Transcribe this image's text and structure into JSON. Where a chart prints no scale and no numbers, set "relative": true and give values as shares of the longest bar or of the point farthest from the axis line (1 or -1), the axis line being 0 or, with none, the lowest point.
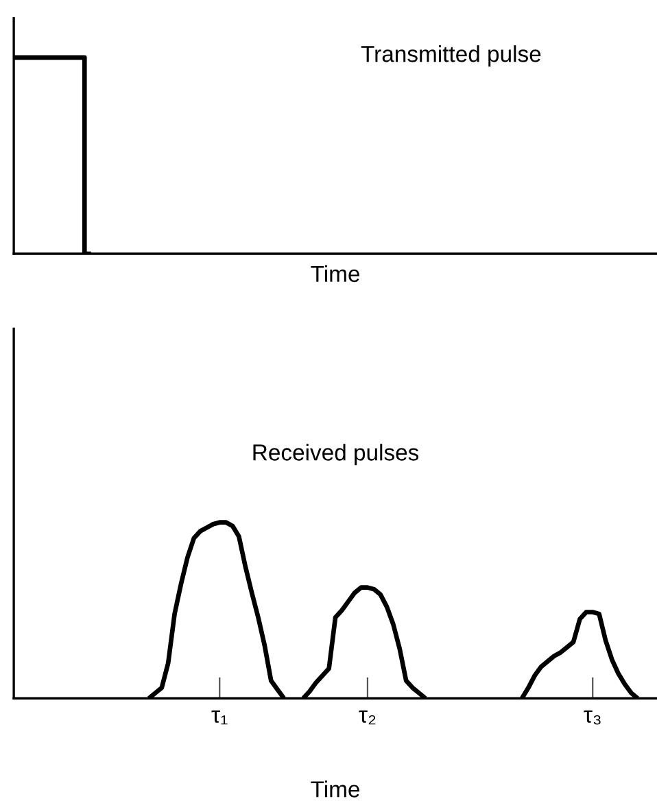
{
  "chart_data": [
    {
      "type": "step",
      "title": "Transmitted pulse",
      "xlabel": "Time",
      "relative": true,
      "tick_labels": false,
      "categories": [
        null,
        null,
        null,
        null,
        null,
        null,
        null,
        null,
        null,
        null,
        null,
        null,
        null,
        null,
        null,
        null,
        null,
        null,
        null,
        null,
        null,
        null,
        null,
        null,
        null,
        null,
        null,
        null,
        null,
        null,
        null,
        null,
        null,
        null,
        null,
        null,
        null,
        null,
        null,
        null,
        null,
        null,
        null,
        null,
        null,
        null,
        null,
        null,
        null,
        null,
        null,
        null,
        null,
        null,
        null,
        null,
        null,
        null,
        null,
        null,
        null,
        null,
        null,
        null,
        null,
        null,
        null,
        null,
        null,
        null,
        null,
        null,
        null,
        null,
        null,
        null,
        null,
        null,
        null,
        null,
        null,
        null,
        null,
        null,
        null,
        null,
        null,
        null,
        null,
        null,
        null,
        null,
        null,
        null,
        null,
        null,
        null,
        null,
        null,
        null,
        null
      ],
      "series": [
        {
          "color": "#000000",
          "values": [
            1,
            1,
            1,
            1,
            1,
            1,
            1,
            1,
            1,
            1,
            1,
            0,
            null,
            null,
            null,
            null,
            null,
            null,
            null,
            null,
            null,
            null,
            null,
            null,
            null,
            null,
            null,
            null,
            null,
            null,
            null,
            null,
            null,
            null,
            null,
            null,
            null,
            null,
            null,
            null,
            null,
            null,
            null,
            null,
            null,
            null,
            null,
            null,
            null,
            null,
            null,
            null,
            null,
            null,
            null,
            null,
            null,
            null,
            null,
            null,
            null,
            null,
            null,
            null,
            null,
            null,
            null,
            null,
            null,
            null,
            null,
            null,
            null,
            null,
            null,
            null,
            null,
            null,
            null,
            null,
            null,
            null,
            null,
            null,
            null,
            null,
            null,
            null,
            null,
            null,
            null,
            null,
            null,
            null,
            null,
            null,
            null,
            null,
            null,
            null,
            null
          ]
        }
      ]
    },
    {
      "type": "line",
      "title": "Received pulses",
      "xlabel": "Time",
      "relative": true,
      "tick_labels": "x",
      "categories": [
        null,
        null,
        null,
        null,
        null,
        null,
        null,
        null,
        null,
        null,
        null,
        null,
        null,
        null,
        null,
        null,
        null,
        null,
        null,
        null,
        null,
        null,
        null,
        null,
        null,
        null,
        null,
        null,
        null,
        null,
        null,
        null,
        "τ₁",
        null,
        null,
        null,
        null,
        null,
        null,
        null,
        null,
        null,
        null,
        null,
        null,
        null,
        null,
        null,
        null,
        null,
        null,
        null,
        null,
        null,
        null,
        "τ₂",
        null,
        null,
        null,
        null,
        null,
        null,
        null,
        null,
        null,
        null,
        null,
        null,
        null,
        null,
        null,
        null,
        null,
        null,
        null,
        null,
        null,
        null,
        null,
        null,
        null,
        null,
        null,
        null,
        null,
        null,
        null,
        null,
        null,
        null,
        "τ₃",
        null,
        null,
        null,
        null,
        null,
        null,
        null,
        null,
        null,
        null
      ],
      "series": [
        {
          "color": "#000000",
          "values": [
            null,
            null,
            null,
            null,
            null,
            null,
            null,
            null,
            null,
            null,
            null,
            null,
            null,
            null,
            null,
            null,
            null,
            null,
            null,
            null,
            null,
            0,
            0.03,
            0.06,
            0.2,
            0.48,
            0.65,
            0.8,
            0.91,
            0.95,
            0.97,
            0.99,
            1.0,
            1.0,
            0.98,
            0.92,
            0.75,
            0.6,
            0.46,
            0.3,
            0.1,
            0.05,
            0,
            null,
            null,
            null,
            null,
            null,
            null,
            null,
            null,
            null,
            null,
            null,
            null,
            null,
            null,
            null,
            null,
            null,
            null,
            null,
            null,
            null,
            null,
            null,
            null,
            null,
            null,
            null,
            null,
            null,
            null,
            null,
            null,
            null,
            null,
            null,
            null,
            null,
            null,
            null,
            null,
            null,
            null,
            null,
            null,
            null,
            null,
            null,
            null,
            null,
            null,
            null,
            null,
            null,
            null,
            null,
            null,
            null,
            null
          ]
        },
        {
          "color": "#000000",
          "values": [
            null,
            null,
            null,
            null,
            null,
            null,
            null,
            null,
            null,
            null,
            null,
            null,
            null,
            null,
            null,
            null,
            null,
            null,
            null,
            null,
            null,
            null,
            null,
            null,
            null,
            null,
            null,
            null,
            null,
            null,
            null,
            null,
            null,
            null,
            null,
            null,
            null,
            null,
            null,
            null,
            null,
            null,
            null,
            null,
            null,
            0,
            0.04,
            0.09,
            0.13,
            0.17,
            0.46,
            0.5,
            0.55,
            0.6,
            0.63,
            0.63,
            0.62,
            0.59,
            0.52,
            0.42,
            0.28,
            0.1,
            0.06,
            0.03,
            0,
            null,
            null,
            null,
            null,
            null,
            null,
            null,
            null,
            null,
            null,
            null,
            null,
            null,
            null,
            null,
            null,
            null,
            null,
            null,
            null,
            null,
            null,
            null,
            null,
            null,
            null,
            null,
            null,
            null,
            null,
            null,
            null,
            null,
            null,
            null,
            null
          ]
        },
        {
          "color": "#000000",
          "values": [
            null,
            null,
            null,
            null,
            null,
            null,
            null,
            null,
            null,
            null,
            null,
            null,
            null,
            null,
            null,
            null,
            null,
            null,
            null,
            null,
            null,
            null,
            null,
            null,
            null,
            null,
            null,
            null,
            null,
            null,
            null,
            null,
            null,
            null,
            null,
            null,
            null,
            null,
            null,
            null,
            null,
            null,
            null,
            null,
            null,
            null,
            null,
            null,
            null,
            null,
            null,
            null,
            null,
            null,
            null,
            null,
            null,
            null,
            null,
            null,
            null,
            null,
            null,
            null,
            null,
            null,
            null,
            null,
            null,
            null,
            null,
            null,
            null,
            null,
            null,
            null,
            null,
            null,
            null,
            0,
            0.06,
            0.13,
            0.18,
            0.21,
            0.24,
            0.26,
            0.29,
            0.32,
            0.45,
            0.49,
            0.49,
            0.48,
            0.33,
            0.22,
            0.14,
            0.08,
            0.03,
            0,
            null,
            null,
            null
          ]
        }
      ]
    }
  ]
}
